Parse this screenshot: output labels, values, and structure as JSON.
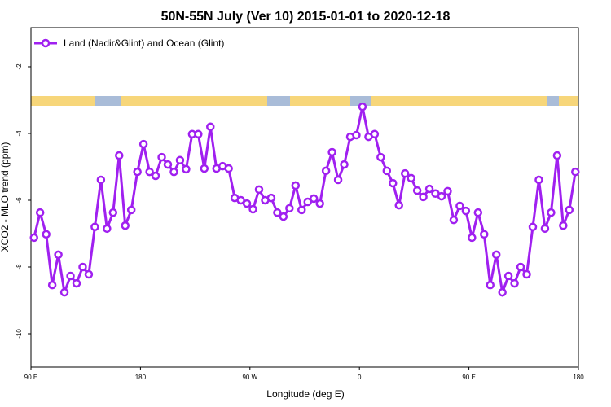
{
  "chart_data": {
    "type": "line",
    "title": "50N-55N July (Ver 10)   2015-01-01 to 2020-12-18",
    "x_label": "Longitude (deg E)",
    "y_label": "XCO2 - MLO trend (ppm)",
    "xlim": [
      90,
      540
    ],
    "xticks": [
      {
        "value": 90,
        "label": "90 E"
      },
      {
        "value": 180,
        "label": "180"
      },
      {
        "value": 270,
        "label": "90 W"
      },
      {
        "value": 360,
        "label": "0"
      },
      {
        "value": 450,
        "label": "90 E"
      },
      {
        "value": 540,
        "label": "180"
      }
    ],
    "ylim": [
      -11,
      -0.83
    ],
    "yticks": [
      -2,
      -4,
      -6,
      -8,
      -10
    ],
    "legend": "top-left",
    "x": [
      92.5,
      97.5,
      102.5,
      107.5,
      112.5,
      117.5,
      122.5,
      127.5,
      132.5,
      137.5,
      142.5,
      147.5,
      152.5,
      157.5,
      162.5,
      167.5,
      172.5,
      177.5,
      182.5,
      187.5,
      192.5,
      197.5,
      202.5,
      207.5,
      212.5,
      217.5,
      222.5,
      227.5,
      232.5,
      237.5,
      242.5,
      247.5,
      252.5,
      257.5,
      262.5,
      267.5,
      272.5,
      277.5,
      282.5,
      287.5,
      292.5,
      297.5,
      302.5,
      307.5,
      312.5,
      317.5,
      322.5,
      327.5,
      332.5,
      337.5,
      342.5,
      347.5,
      352.5,
      357.5,
      362.5,
      367.5,
      372.5,
      377.5,
      382.5,
      387.5,
      392.5,
      397.5,
      402.5,
      407.5,
      412.5,
      417.5,
      422.5,
      427.5,
      432.5,
      437.5,
      442.5,
      447.5,
      452.5,
      457.5,
      462.5,
      467.5,
      472.5,
      477.5,
      482.5,
      487.5,
      492.5,
      497.5,
      502.5,
      507.5,
      512.5,
      517.5,
      522.5,
      527.5,
      532.5,
      537.5
    ],
    "series": [
      {
        "name": "Land (Nadir&Glint) and Ocean (Glint)",
        "color": "#a020f0",
        "values": [
          -7.12,
          -6.37,
          -7.02,
          -8.54,
          -7.63,
          -8.76,
          -8.27,
          -8.49,
          -8.0,
          -8.22,
          -6.8,
          -5.39,
          -6.85,
          -6.37,
          -4.66,
          -6.76,
          -6.29,
          -5.15,
          -4.32,
          -5.15,
          -5.27,
          -4.71,
          -4.93,
          -5.15,
          -4.8,
          -5.07,
          -4.02,
          -4.02,
          -5.05,
          -3.8,
          -5.05,
          -4.98,
          -5.05,
          -5.93,
          -6.0,
          -6.1,
          -6.27,
          -5.68,
          -6.0,
          -5.93,
          -6.37,
          -6.49,
          -6.24,
          -5.56,
          -6.29,
          -6.05,
          -5.95,
          -6.1,
          -5.12,
          -4.56,
          -5.39,
          -4.93,
          -4.1,
          -4.05,
          -3.2,
          -4.1,
          -4.02,
          -4.71,
          -5.12,
          -5.49,
          -6.15,
          -5.2,
          -5.34,
          -5.71,
          -5.9,
          -5.66,
          -5.8,
          -5.88,
          -5.73,
          -6.59,
          -6.17,
          -6.32,
          -7.12,
          -6.37,
          -7.02,
          -8.54,
          -7.63,
          -8.76,
          -8.27,
          -8.49,
          -8.0,
          -8.22,
          -6.8,
          -5.39,
          -6.85,
          -6.37,
          -4.66,
          -6.76,
          -6.29,
          -5.15
        ]
      }
    ]
  }
}
